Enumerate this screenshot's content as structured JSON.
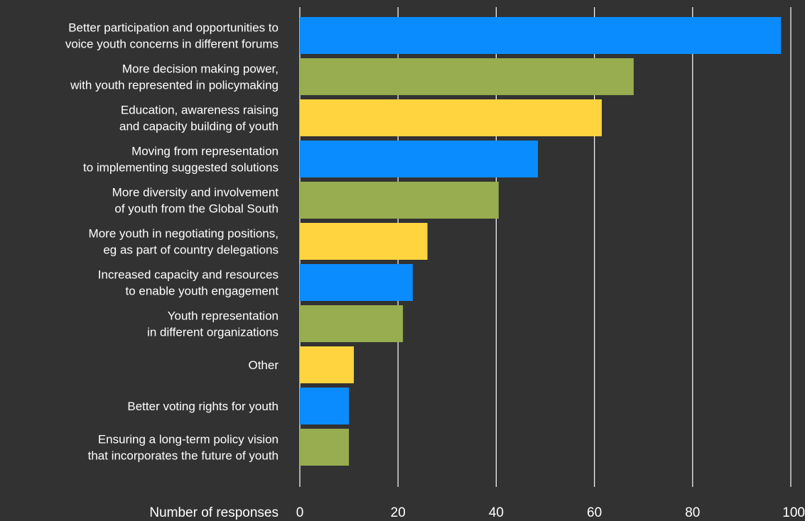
{
  "chart_data": {
    "type": "bar",
    "orientation": "horizontal",
    "categories": [
      [
        "Better participation and opportunities to",
        "voice youth concerns in different forums"
      ],
      [
        "More decision making power,",
        "with youth represented in policymaking"
      ],
      [
        "Education, awareness raising",
        "and capacity building of youth"
      ],
      [
        "Moving from representation",
        "to implementing suggested solutions"
      ],
      [
        "More diversity and involvement",
        "of youth from the Global South"
      ],
      [
        "More youth in negotiating positions,",
        "eg as part of country delegations"
      ],
      [
        "Increased capacity and resources",
        "to enable youth engagement"
      ],
      [
        "Youth representation",
        "in different organizations"
      ],
      [
        "Other"
      ],
      [
        "Better voting rights for youth"
      ],
      [
        "Ensuring a long-term policy vision",
        "that incorporates the future of youth"
      ]
    ],
    "values": [
      98,
      68,
      61.5,
      48.5,
      40.5,
      26,
      23,
      21,
      11,
      10,
      10
    ],
    "bar_colors": [
      "#0a8cff",
      "#97ad4f",
      "#ffd43f",
      "#0a8cff",
      "#97ad4f",
      "#ffd43f",
      "#0a8cff",
      "#97ad4f",
      "#ffd43f",
      "#0a8cff",
      "#97ad4f"
    ],
    "xlabel": "Number of responses",
    "xlim": [
      0,
      100
    ],
    "xticks": [
      "0",
      "20",
      "40",
      "60",
      "80",
      "100"
    ],
    "grid": "vertical"
  }
}
